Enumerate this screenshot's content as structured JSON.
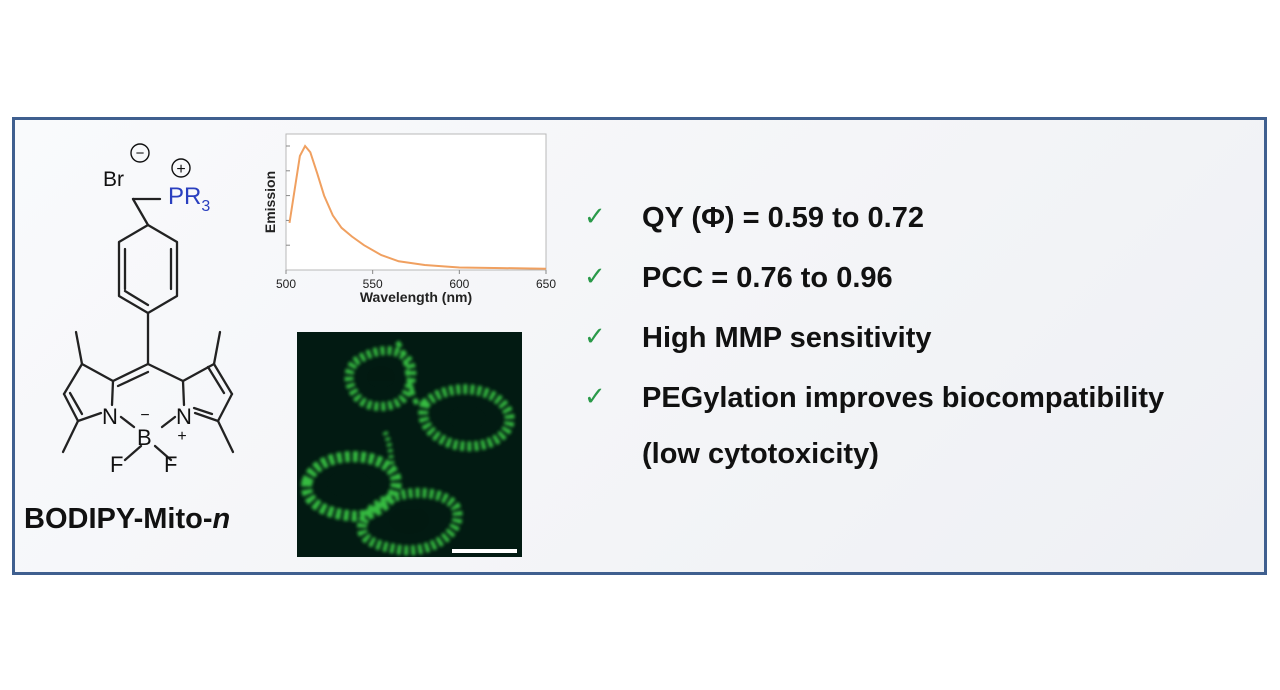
{
  "molecule": {
    "name_prefix": "BODIPY-Mito-",
    "name_suffix": "n",
    "atoms": {
      "bromide": "Br",
      "bromide_charge": "−",
      "phosphonium": "PR",
      "phosphonium_sub": "3",
      "phosphonium_charge": "+",
      "nitrogen_left": "N",
      "nitrogen_right": "N",
      "boron": "B",
      "boron_charge": "−",
      "nitrogen_charge": "+",
      "fluorine_left": "F",
      "fluorine_right": "F"
    },
    "colors": {
      "phosphonium": "#2a3fbf",
      "bonds": "#222222"
    }
  },
  "spectrum": {
    "chart_data": {
      "type": "line",
      "xlabel": "Wavelength (nm)",
      "ylabel": "Emission",
      "xlim": [
        500,
        650
      ],
      "x_ticks": [
        500,
        550,
        600,
        650
      ],
      "series": [
        {
          "color": "#f0a060",
          "x": [
            502,
            505,
            508,
            511,
            514,
            518,
            522,
            527,
            532,
            538,
            545,
            555,
            565,
            580,
            600,
            625,
            650
          ],
          "y": [
            0.38,
            0.65,
            0.92,
            1.0,
            0.95,
            0.78,
            0.6,
            0.44,
            0.34,
            0.27,
            0.2,
            0.12,
            0.07,
            0.04,
            0.02,
            0.015,
            0.01
          ]
        }
      ]
    }
  },
  "micrograph": {
    "has_scale_bar": true,
    "stain_color": "#3fd84a"
  },
  "points": [
    {
      "id": "qy",
      "check": "✓",
      "text": "QY (Φ) = 0.59 to 0.72"
    },
    {
      "id": "pcc",
      "check": "✓",
      "text": "PCC = 0.76 to 0.96"
    },
    {
      "id": "mmp",
      "check": "✓",
      "text": "High MMP sensitivity"
    },
    {
      "id": "peg",
      "check": "✓",
      "text": "PEGylation improves biocompatibility"
    },
    {
      "id": "tox",
      "check": "",
      "text": "(low cytotoxicity)"
    }
  ]
}
